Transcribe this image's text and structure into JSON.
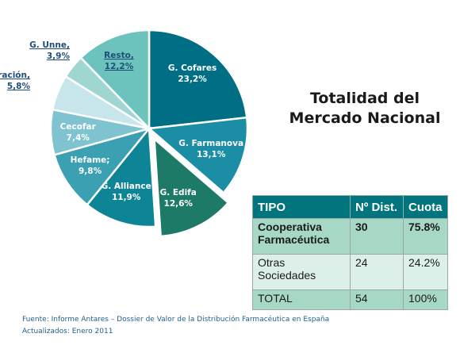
{
  "chart_data": {
    "type": "pie",
    "title_lines": [
      "Totalidad del",
      "Mercado Nacional"
    ],
    "slices": [
      {
        "label": "G. Cofares",
        "value": 23.2,
        "display": "23,2%",
        "color": "#006f85",
        "text_color": "#ffffff",
        "exploded": false
      },
      {
        "label": "G. Farmanova",
        "value": 13.1,
        "display": "13,1%",
        "color": "#1b8ea5",
        "text_color": "#ffffff",
        "exploded": false
      },
      {
        "label": "G. Edifa",
        "value": 12.6,
        "display": "12,6%",
        "color": "#1d7a66",
        "text_color": "#ffffff",
        "exploded": true
      },
      {
        "label": "G. Alliance",
        "value": 11.9,
        "display": "11,9%",
        "color": "#0e8596",
        "text_color": "#ffffff",
        "exploded": false
      },
      {
        "label": "Hefame;",
        "value": 9.8,
        "display": "9,8%",
        "color": "#3aa0b2",
        "text_color": "#ffffff",
        "exploded": false
      },
      {
        "label": "Cecofar",
        "value": 7.4,
        "display": "7,4%",
        "color": "#7fc3d0",
        "text_color": "#ffffff",
        "exploded": false
      },
      {
        "label": "Federación,",
        "value": 5.8,
        "display": "5,8%",
        "color": "#c6e6ec",
        "text_color": "#1f4e79",
        "exploded": false
      },
      {
        "label": "G. Unne,",
        "value": 3.9,
        "display": "3,9%",
        "color": "#9fd6cf",
        "text_color": "#1f4e79",
        "exploded": false
      },
      {
        "label": "Resto,",
        "value": 12.2,
        "display": "12,2%",
        "color": "#6cc3bd",
        "text_color": "#1f4e79",
        "exploded": false
      }
    ]
  },
  "table": {
    "headers": [
      "TIPO",
      "Nº Dist.",
      "Cuota"
    ],
    "rows": [
      {
        "tipo": "Cooperativa Farmacéutica",
        "dist": "30",
        "cuota": "75.8%"
      },
      {
        "tipo": "Otras Sociedades",
        "dist": "24",
        "cuota": "24.2%"
      },
      {
        "tipo": "TOTAL",
        "dist": "54",
        "cuota": "100%"
      }
    ]
  },
  "source": {
    "line1": "Fuente: Informe Antares – Dossier de Valor de la Distribución Farmacéutica en España",
    "line2": "Actualizados: Enero 2011"
  }
}
